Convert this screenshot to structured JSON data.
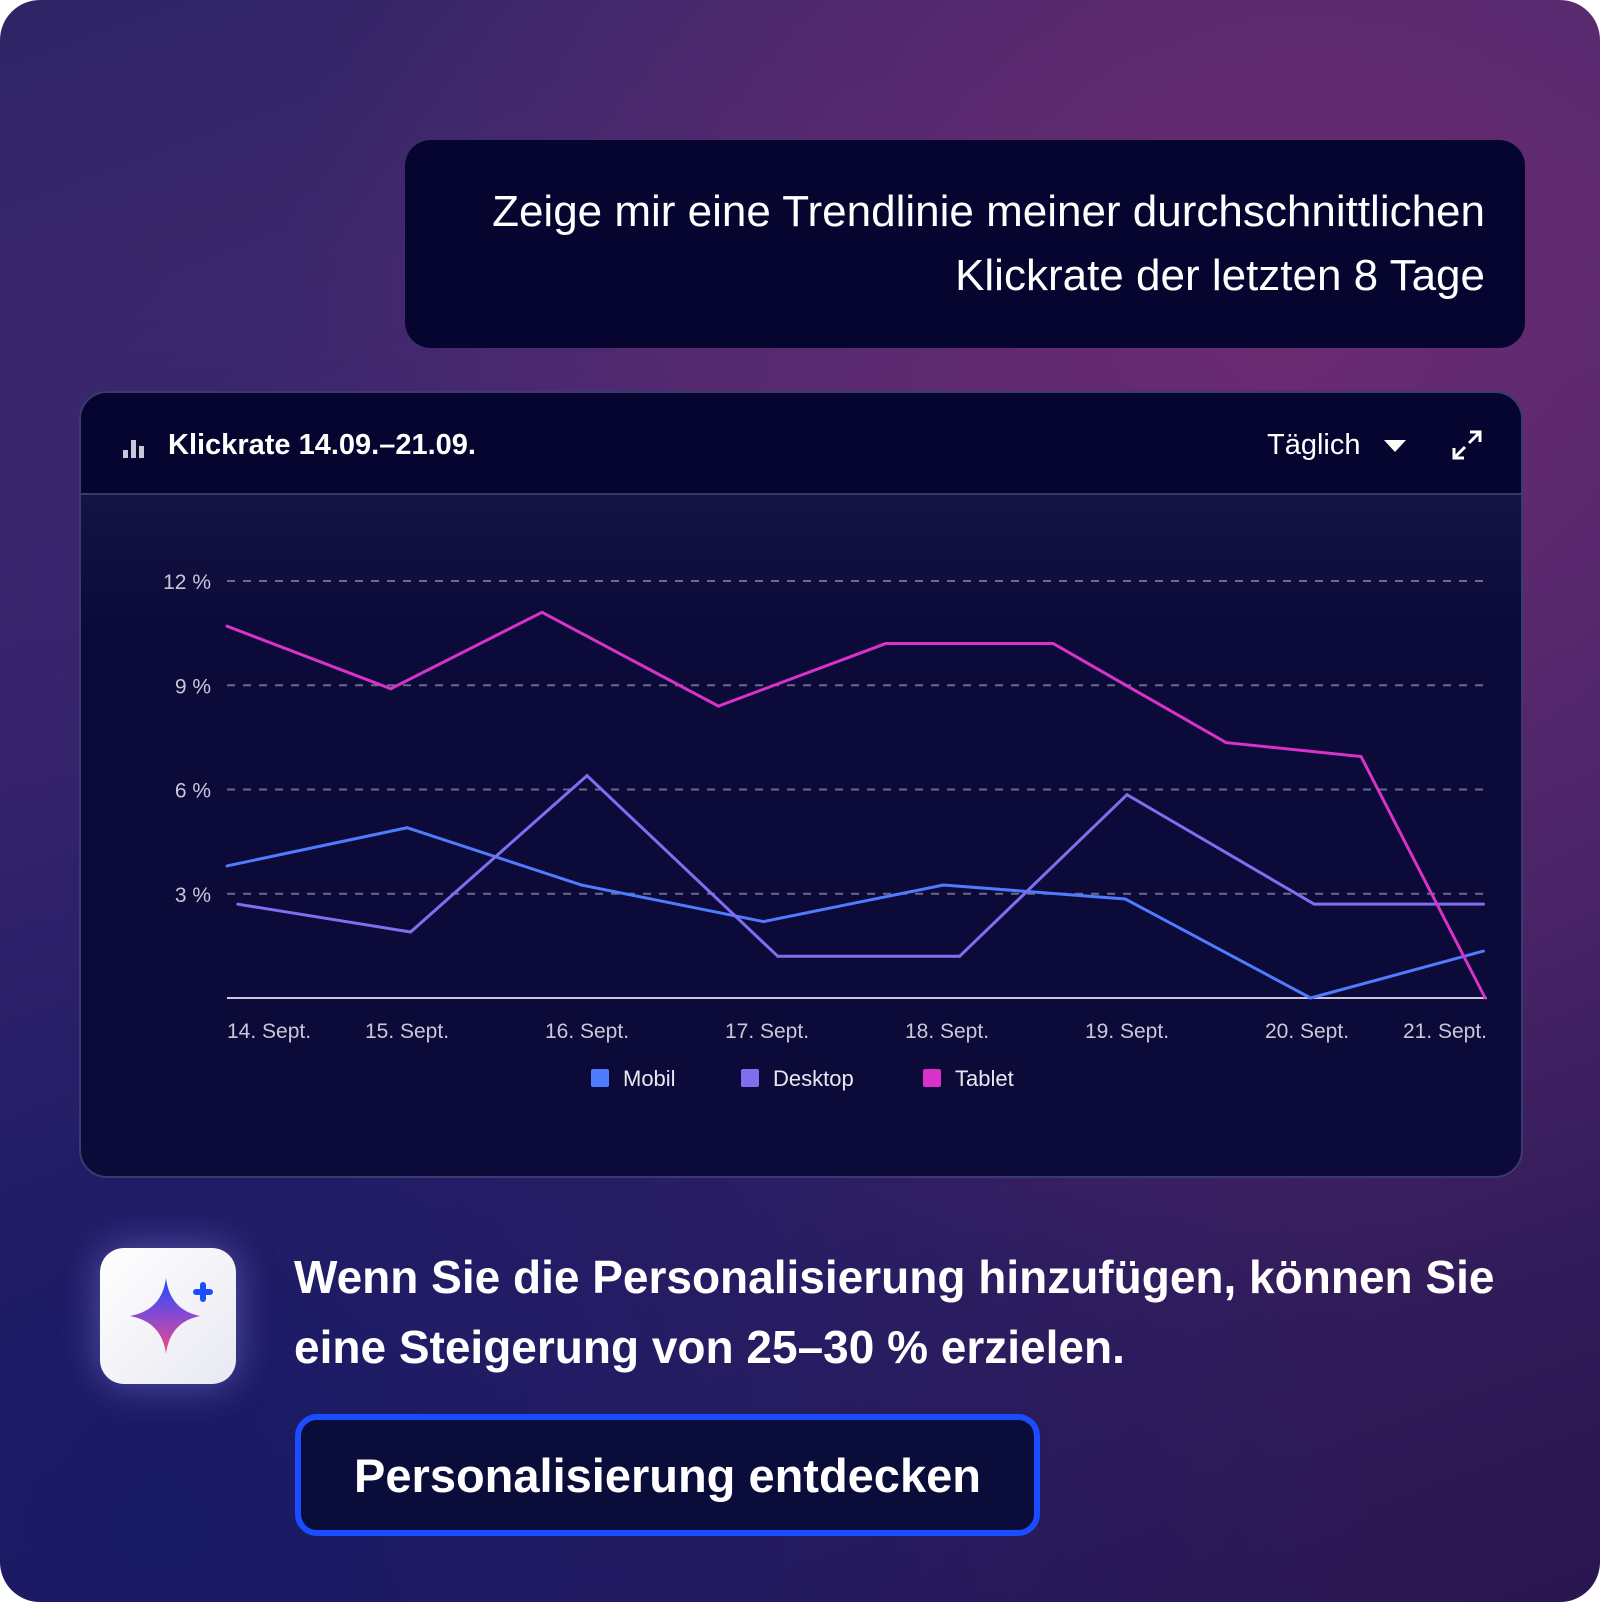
{
  "prompt": {
    "text": "Zeige mir eine Trendlinie meiner durchschnittlichen Klickrate der letzten 8 Tage"
  },
  "card": {
    "title": "Klickrate 14.09.–21.09.",
    "title_icon": "bar-chart-icon",
    "period_select": "Täglich",
    "expand_icon": "expand-icon"
  },
  "chart_data": {
    "type": "line",
    "title": "Klickrate 14.09.–21.09.",
    "x_unit": "day of September",
    "xlim": [
      14,
      21
    ],
    "ylim": [
      0,
      12
    ],
    "y_ticks": [
      3,
      6,
      9,
      12
    ],
    "y_tick_labels": [
      "3 %",
      "6 %",
      "9 %",
      "12 %"
    ],
    "x_ticks": [
      14,
      15,
      16,
      17,
      18,
      19,
      20,
      21
    ],
    "x_tick_labels": [
      "14. Sept.",
      "15. Sept.",
      "16. Sept.",
      "17. Sept.",
      "18. Sept.",
      "19. Sept.",
      "20. Sept.",
      "21. Sept."
    ],
    "grid": true,
    "legend": "bottom",
    "series": [
      {
        "name": "Mobil",
        "color": "#4f7bff",
        "points": [
          [
            14.0,
            3.8
          ],
          [
            15.0,
            4.9
          ],
          [
            15.97,
            3.25
          ],
          [
            16.98,
            2.2
          ],
          [
            17.98,
            3.25
          ],
          [
            18.99,
            2.85
          ],
          [
            20.02,
            0.0
          ],
          [
            20.98,
            1.35
          ]
        ]
      },
      {
        "name": "Desktop",
        "color": "#7f6ff0",
        "points": [
          [
            14.06,
            2.7
          ],
          [
            15.02,
            1.9
          ],
          [
            16.0,
            6.4
          ],
          [
            17.06,
            1.2
          ],
          [
            18.07,
            1.2
          ],
          [
            19.0,
            5.85
          ],
          [
            20.04,
            2.7
          ],
          [
            20.98,
            2.7
          ]
        ]
      },
      {
        "name": "Tablet",
        "color": "#d832c8",
        "points": [
          [
            14.0,
            10.7
          ],
          [
            14.91,
            8.9
          ],
          [
            15.75,
            11.1
          ],
          [
            16.73,
            8.4
          ],
          [
            17.66,
            10.2
          ],
          [
            18.59,
            10.2
          ],
          [
            19.55,
            7.35
          ],
          [
            20.3,
            6.95
          ],
          [
            20.99,
            0.0
          ]
        ]
      }
    ]
  },
  "insight": {
    "text": "Wenn Sie die Personalisierung hinzufügen, können Sie eine Steigerung von 25–30 % erzielen.",
    "icon": "sparkle-icon"
  },
  "cta": {
    "label": "Personalisierung entdecken",
    "border_color": "#1a4dff"
  }
}
